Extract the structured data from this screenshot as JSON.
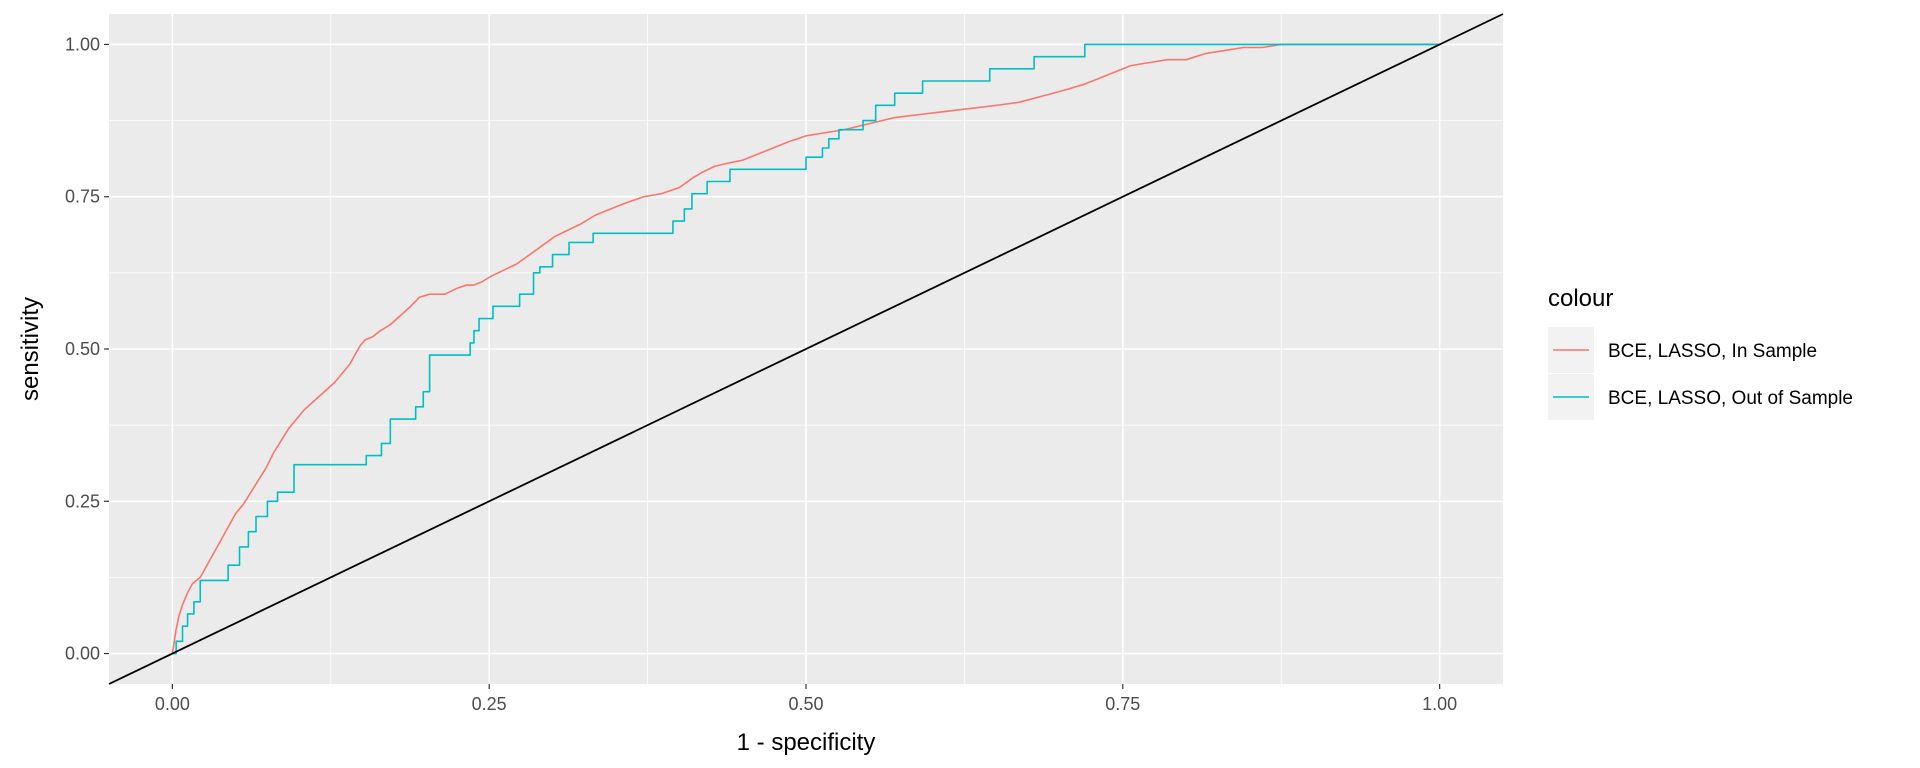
{
  "chart_data": {
    "type": "line",
    "title": "",
    "xlabel": "1 - specificity",
    "ylabel": "sensitivity",
    "xlim": [
      -0.05,
      1.05
    ],
    "ylim": [
      -0.05,
      1.05
    ],
    "x_ticks": [
      0.0,
      0.25,
      0.5,
      0.75,
      1.0
    ],
    "x_tick_labels": [
      "0.00",
      "0.25",
      "0.50",
      "0.75",
      "1.00"
    ],
    "y_ticks": [
      0.0,
      0.25,
      0.5,
      0.75,
      1.0
    ],
    "y_tick_labels": [
      "0.00",
      "0.25",
      "0.50",
      "0.75",
      "1.00"
    ],
    "grid": true,
    "panel_background": "#ebebeb",
    "legend": {
      "title": "colour",
      "placement": "right"
    },
    "series": [
      {
        "name": "BCE, LASSO, In Sample",
        "color": "#F8766D",
        "x": [
          0.0,
          0.003,
          0.005,
          0.008,
          0.012,
          0.016,
          0.022,
          0.026,
          0.03,
          0.034,
          0.038,
          0.042,
          0.046,
          0.05,
          0.056,
          0.062,
          0.068,
          0.074,
          0.08,
          0.086,
          0.092,
          0.098,
          0.104,
          0.112,
          0.12,
          0.128,
          0.134,
          0.14,
          0.144,
          0.148,
          0.152,
          0.158,
          0.164,
          0.172,
          0.18,
          0.188,
          0.195,
          0.203,
          0.215,
          0.225,
          0.232,
          0.238,
          0.244,
          0.252,
          0.262,
          0.272,
          0.282,
          0.292,
          0.302,
          0.312,
          0.322,
          0.334,
          0.346,
          0.358,
          0.372,
          0.386,
          0.4,
          0.41,
          0.418,
          0.428,
          0.438,
          0.45,
          0.462,
          0.474,
          0.486,
          0.5,
          0.515,
          0.53,
          0.55,
          0.57,
          0.59,
          0.61,
          0.63,
          0.65,
          0.668,
          0.686,
          0.704,
          0.72,
          0.732,
          0.744,
          0.756,
          0.77,
          0.785,
          0.8,
          0.815,
          0.83,
          0.845,
          0.86,
          0.875,
          0.89,
          0.91,
          0.93,
          0.95,
          0.97,
          1.0
        ],
        "y": [
          0.0,
          0.04,
          0.06,
          0.08,
          0.1,
          0.115,
          0.125,
          0.14,
          0.155,
          0.17,
          0.185,
          0.2,
          0.215,
          0.23,
          0.245,
          0.265,
          0.285,
          0.305,
          0.33,
          0.35,
          0.37,
          0.385,
          0.4,
          0.415,
          0.43,
          0.445,
          0.46,
          0.475,
          0.49,
          0.505,
          0.515,
          0.52,
          0.53,
          0.54,
          0.555,
          0.57,
          0.585,
          0.59,
          0.59,
          0.6,
          0.605,
          0.605,
          0.61,
          0.62,
          0.63,
          0.64,
          0.655,
          0.67,
          0.685,
          0.695,
          0.705,
          0.72,
          0.73,
          0.74,
          0.75,
          0.755,
          0.765,
          0.78,
          0.79,
          0.8,
          0.805,
          0.81,
          0.82,
          0.83,
          0.84,
          0.85,
          0.855,
          0.86,
          0.87,
          0.88,
          0.885,
          0.89,
          0.895,
          0.9,
          0.905,
          0.915,
          0.925,
          0.935,
          0.945,
          0.955,
          0.965,
          0.97,
          0.975,
          0.975,
          0.985,
          0.99,
          0.995,
          0.995,
          1.0,
          1.0,
          1.0,
          1.0,
          1.0,
          1.0,
          1.0
        ]
      },
      {
        "name": "BCE, LASSO, Out of Sample",
        "color": "#00BFC4",
        "x": [
          0.0,
          0.003,
          0.003,
          0.008,
          0.008,
          0.012,
          0.012,
          0.017,
          0.017,
          0.022,
          0.022,
          0.044,
          0.044,
          0.053,
          0.053,
          0.06,
          0.06,
          0.066,
          0.066,
          0.075,
          0.075,
          0.083,
          0.083,
          0.096,
          0.096,
          0.153,
          0.153,
          0.165,
          0.165,
          0.172,
          0.172,
          0.192,
          0.192,
          0.198,
          0.198,
          0.203,
          0.203,
          0.235,
          0.235,
          0.238,
          0.238,
          0.242,
          0.242,
          0.253,
          0.253,
          0.274,
          0.274,
          0.285,
          0.285,
          0.29,
          0.29,
          0.3,
          0.3,
          0.313,
          0.313,
          0.332,
          0.332,
          0.395,
          0.395,
          0.404,
          0.404,
          0.41,
          0.41,
          0.422,
          0.422,
          0.44,
          0.44,
          0.5,
          0.5,
          0.513,
          0.513,
          0.518,
          0.518,
          0.526,
          0.526,
          0.545,
          0.545,
          0.555,
          0.555,
          0.57,
          0.57,
          0.592,
          0.592,
          0.645,
          0.645,
          0.68,
          0.68,
          0.72,
          0.72,
          0.886,
          0.886,
          1.0
        ],
        "y": [
          0.0,
          0.0,
          0.02,
          0.02,
          0.045,
          0.045,
          0.065,
          0.065,
          0.085,
          0.085,
          0.12,
          0.12,
          0.145,
          0.145,
          0.175,
          0.175,
          0.2,
          0.2,
          0.225,
          0.225,
          0.25,
          0.25,
          0.265,
          0.265,
          0.31,
          0.31,
          0.325,
          0.325,
          0.345,
          0.345,
          0.385,
          0.385,
          0.405,
          0.405,
          0.43,
          0.43,
          0.49,
          0.49,
          0.51,
          0.51,
          0.53,
          0.53,
          0.55,
          0.55,
          0.57,
          0.57,
          0.59,
          0.59,
          0.625,
          0.625,
          0.635,
          0.635,
          0.655,
          0.655,
          0.675,
          0.675,
          0.69,
          0.69,
          0.71,
          0.71,
          0.73,
          0.73,
          0.755,
          0.755,
          0.775,
          0.775,
          0.795,
          0.795,
          0.815,
          0.815,
          0.83,
          0.83,
          0.845,
          0.845,
          0.86,
          0.86,
          0.875,
          0.875,
          0.9,
          0.9,
          0.92,
          0.92,
          0.94,
          0.94,
          0.96,
          0.96,
          0.98,
          0.98,
          1.0,
          1.0,
          1.0,
          1.0
        ]
      },
      {
        "color": "#000000",
        "x": [
          -0.05,
          1.05
        ],
        "y": [
          -0.05,
          1.05
        ]
      }
    ]
  }
}
